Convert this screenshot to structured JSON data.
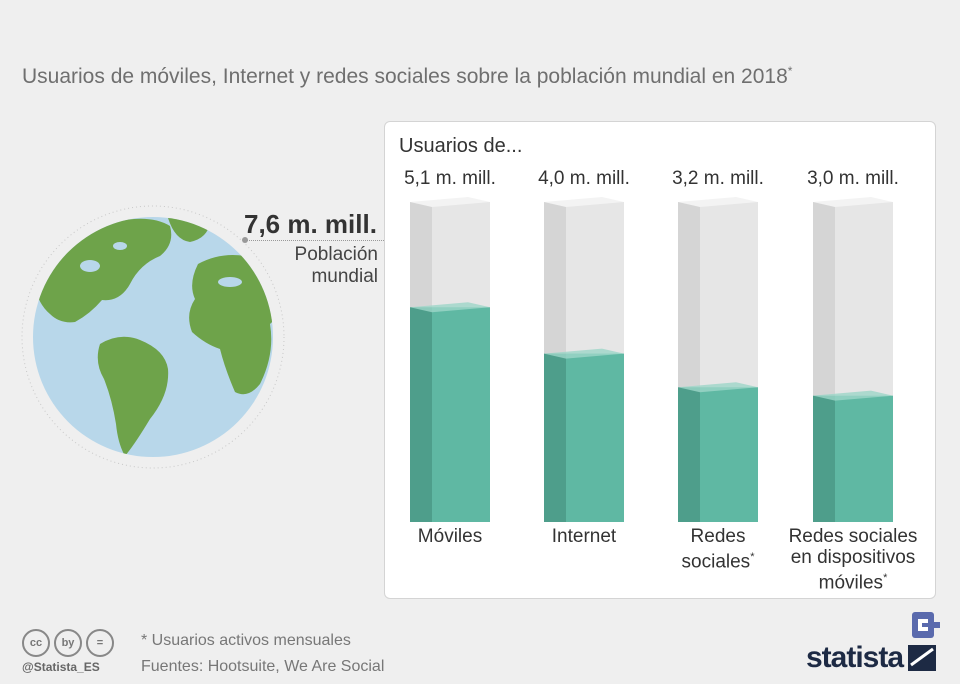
{
  "title": "Usuarios de móviles, Internet y redes sociales sobre la población mundial en 2018",
  "title_mark": "*",
  "population": {
    "value": "7,6 m. mill.",
    "label": "Población mundial"
  },
  "panel_title": "Usuarios de...",
  "colors": {
    "filled": "#5fb8a3",
    "filled_dark": "#4e9e8b",
    "filled_top": "#9ed6c8",
    "empty": "#e6e6e6",
    "empty_dark": "#d5d5d5",
    "empty_top": "#f3f3f3",
    "globe_ocean": "#b8d7ea",
    "globe_land": "#6ea34a"
  },
  "chart_data": {
    "type": "bar",
    "total": 7.6,
    "unit": "m. mill.",
    "categories": [
      "Móviles",
      "Internet",
      "Redes sociales",
      "Redes sociales en dispositivos móviles"
    ],
    "values": [
      5.1,
      4.0,
      3.2,
      3.0
    ],
    "value_labels": [
      "5,1 m. mill.",
      "4,0 m. mill.",
      "3,2 m. mill.",
      "3,0 m. mill."
    ],
    "category_labels": [
      {
        "lines": [
          "Móviles"
        ],
        "mark": ""
      },
      {
        "lines": [
          "Internet"
        ],
        "mark": ""
      },
      {
        "lines": [
          "Redes",
          "sociales"
        ],
        "mark": "*"
      },
      {
        "lines": [
          "Redes sociales",
          "en dispositivos",
          "móviles"
        ],
        "mark": "*"
      }
    ]
  },
  "footer": {
    "note": "* Usuarios activos mensuales",
    "sources": "Fuentes: Hootsuite, We Are Social",
    "handle": "@Statista_ES",
    "brand": "statista",
    "cc_icons": [
      "cc",
      "by",
      "="
    ]
  }
}
